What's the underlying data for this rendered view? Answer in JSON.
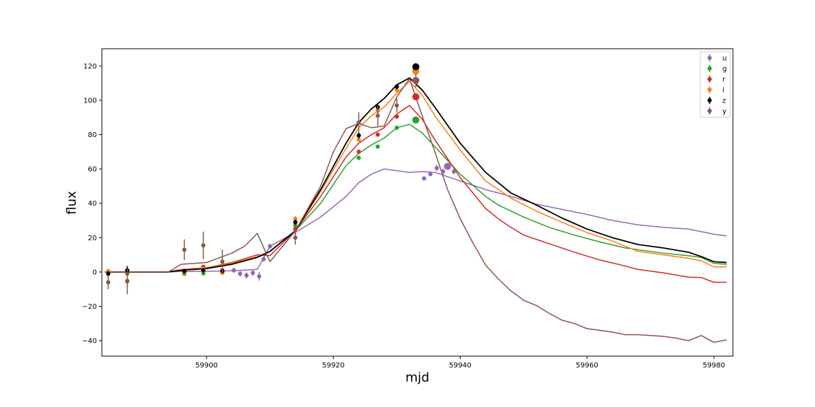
{
  "chart_data": {
    "type": "line",
    "xlabel": "mjd",
    "ylabel": "flux",
    "xlim": [
      59883.5,
      59983
    ],
    "ylim": [
      -49,
      130
    ],
    "x_ticks": [
      59900,
      59920,
      59940,
      59960,
      59980
    ],
    "y_ticks": [
      -40,
      -20,
      0,
      20,
      40,
      60,
      80,
      100,
      120
    ],
    "legend_position": "top-right",
    "grid": false,
    "series": [
      {
        "name": "u",
        "color": "#9467bd",
        "model": [
          [
            59884,
            0
          ],
          [
            59894,
            0
          ],
          [
            59896,
            0.3
          ],
          [
            59900,
            0.4
          ],
          [
            59904,
            0.7
          ],
          [
            59908,
            1.5
          ],
          [
            59910,
            15
          ],
          [
            59914,
            23
          ],
          [
            59918,
            32
          ],
          [
            59922,
            44
          ],
          [
            59924,
            52
          ],
          [
            59926,
            57
          ],
          [
            59928,
            60
          ],
          [
            59932,
            58
          ],
          [
            59934,
            58.5
          ],
          [
            59936,
            58
          ],
          [
            59940,
            53
          ],
          [
            59944,
            48
          ],
          [
            59948,
            44
          ],
          [
            59952,
            39.5
          ],
          [
            59956,
            36.5
          ],
          [
            59960,
            33.5
          ],
          [
            59964,
            30
          ],
          [
            59968,
            27.5
          ],
          [
            59972,
            26
          ],
          [
            59976,
            25
          ],
          [
            59980,
            22
          ],
          [
            59982,
            21
          ]
        ],
        "points": [
          [
            59904.3,
            1,
            1.5,
            6
          ],
          [
            59905.3,
            -1,
            1.6,
            6
          ],
          [
            59906.3,
            -2,
            1.8,
            6
          ],
          [
            59907.3,
            -0.5,
            1.8,
            6
          ],
          [
            59908.3,
            -2.5,
            2.5,
            6
          ],
          [
            59909,
            7.5,
            1.5,
            6
          ],
          [
            59910,
            15,
            1.5,
            6
          ],
          [
            59934.3,
            54.5,
            1.2,
            6
          ],
          [
            59935.3,
            57,
            1.2,
            6
          ],
          [
            59936.3,
            60.5,
            1.8,
            6
          ],
          [
            59937.3,
            58.5,
            1.8,
            6
          ],
          [
            59938,
            61.5,
            1.5,
            10
          ],
          [
            59939,
            58.5,
            1.5,
            6
          ]
        ]
      },
      {
        "name": "g",
        "color": "#2ca02c",
        "model": [
          [
            59884,
            0
          ],
          [
            59894,
            0
          ],
          [
            59896,
            1.2
          ],
          [
            59900,
            2
          ],
          [
            59904,
            5
          ],
          [
            59908,
            8.5
          ],
          [
            59910,
            12
          ],
          [
            59914,
            24
          ],
          [
            59918,
            40
          ],
          [
            59922,
            62
          ],
          [
            59924,
            69
          ],
          [
            59926,
            74
          ],
          [
            59928,
            78
          ],
          [
            59930,
            84
          ],
          [
            59932,
            86
          ],
          [
            59934,
            81
          ],
          [
            59936,
            73
          ],
          [
            59940,
            57
          ],
          [
            59944,
            44
          ],
          [
            59946,
            39
          ],
          [
            59950,
            32
          ],
          [
            59954,
            26
          ],
          [
            59958,
            21.5
          ],
          [
            59962,
            17.5
          ],
          [
            59966,
            14
          ],
          [
            59972,
            11
          ],
          [
            59976,
            9.5
          ],
          [
            59978,
            8.5
          ],
          [
            59980,
            5
          ],
          [
            59982,
            4.5
          ]
        ],
        "points": [
          [
            59884.5,
            0,
            1.2,
            6
          ],
          [
            59887.5,
            -1,
            1.2,
            6
          ],
          [
            59896.5,
            -1,
            1.2,
            6
          ],
          [
            59899.5,
            -0.8,
            1.2,
            6
          ],
          [
            59902.5,
            0.5,
            1.2,
            6
          ],
          [
            59914,
            27,
            1.5,
            6
          ],
          [
            59924,
            66.5,
            1.2,
            6
          ],
          [
            59927,
            73,
            1.2,
            6
          ],
          [
            59930,
            84,
            1.2,
            6
          ],
          [
            59933,
            88.5,
            1.5,
            10
          ]
        ]
      },
      {
        "name": "r",
        "color": "#d62728",
        "model": [
          [
            59884,
            0
          ],
          [
            59894,
            0
          ],
          [
            59896,
            1.5
          ],
          [
            59900,
            2.5
          ],
          [
            59904,
            5.5
          ],
          [
            59908,
            10
          ],
          [
            59910,
            9.5
          ],
          [
            59914,
            24
          ],
          [
            59918,
            44
          ],
          [
            59922,
            67
          ],
          [
            59924,
            75
          ],
          [
            59926,
            80
          ],
          [
            59928,
            84
          ],
          [
            59930,
            92
          ],
          [
            59932,
            97
          ],
          [
            59934,
            89
          ],
          [
            59936,
            77
          ],
          [
            59940,
            55
          ],
          [
            59944,
            37
          ],
          [
            59946,
            31
          ],
          [
            59948,
            26
          ],
          [
            59950,
            21.5
          ],
          [
            59954,
            16.5
          ],
          [
            59958,
            11.5
          ],
          [
            59962,
            7
          ],
          [
            59966,
            3.5
          ],
          [
            59968,
            1.5
          ],
          [
            59972,
            -0.5
          ],
          [
            59976,
            -3
          ],
          [
            59978,
            -3.2
          ],
          [
            59980,
            -6
          ],
          [
            59982,
            -6
          ]
        ],
        "points": [
          [
            59884.5,
            0,
            1.2,
            6
          ],
          [
            59887.5,
            0,
            1.2,
            6
          ],
          [
            59896.5,
            0,
            1.2,
            6
          ],
          [
            59899.5,
            3,
            1.2,
            6
          ],
          [
            59902.5,
            1,
            1.2,
            6
          ],
          [
            59914,
            25,
            1.5,
            6
          ],
          [
            59924,
            70,
            1.2,
            6
          ],
          [
            59927,
            80,
            1.2,
            6
          ],
          [
            59930,
            90.5,
            1.2,
            6
          ],
          [
            59933,
            102,
            1.5,
            10
          ]
        ]
      },
      {
        "name": "i",
        "color": "#ff7f0e",
        "model": [
          [
            59884,
            0
          ],
          [
            59894,
            0
          ],
          [
            59896,
            1.5
          ],
          [
            59900,
            2.5
          ],
          [
            59904,
            5
          ],
          [
            59908,
            9
          ],
          [
            59910,
            12
          ],
          [
            59914,
            24
          ],
          [
            59918,
            47
          ],
          [
            59922,
            72
          ],
          [
            59924,
            84
          ],
          [
            59926,
            91
          ],
          [
            59928,
            96
          ],
          [
            59930,
            104
          ],
          [
            59932,
            111
          ],
          [
            59934,
            103
          ],
          [
            59936,
            91
          ],
          [
            59940,
            71
          ],
          [
            59944,
            53
          ],
          [
            59948,
            43
          ],
          [
            59952,
            35.5
          ],
          [
            59956,
            29
          ],
          [
            59960,
            23
          ],
          [
            59964,
            18
          ],
          [
            59968,
            12
          ],
          [
            59972,
            10
          ],
          [
            59976,
            8
          ],
          [
            59978,
            6.5
          ],
          [
            59980,
            3
          ],
          [
            59982,
            3
          ]
        ],
        "points": [
          [
            59884.5,
            0.5,
            1.2,
            6
          ],
          [
            59887.5,
            -5,
            1.5,
            6
          ],
          [
            59896.5,
            0,
            1.2,
            6
          ],
          [
            59899.5,
            2,
            1.2,
            6
          ],
          [
            59902.5,
            -0.5,
            1.2,
            6
          ],
          [
            59914,
            31,
            1.5,
            6
          ],
          [
            59924,
            77,
            1.2,
            6
          ],
          [
            59927,
            94,
            1.2,
            6
          ],
          [
            59930,
            106,
            1.2,
            6
          ],
          [
            59933,
            117,
            1.5,
            10
          ]
        ]
      },
      {
        "name": "z",
        "color": "#000000",
        "model": [
          [
            59884,
            0
          ],
          [
            59894,
            0
          ],
          [
            59896,
            1
          ],
          [
            59900,
            2
          ],
          [
            59904,
            4.5
          ],
          [
            59908,
            8.5
          ],
          [
            59910,
            12
          ],
          [
            59914,
            24
          ],
          [
            59918,
            48
          ],
          [
            59922,
            75
          ],
          [
            59924,
            87
          ],
          [
            59926,
            95
          ],
          [
            59928,
            101
          ],
          [
            59930,
            109
          ],
          [
            59932,
            113
          ],
          [
            59934,
            106
          ],
          [
            59936,
            96
          ],
          [
            59940,
            75
          ],
          [
            59944,
            58
          ],
          [
            59946,
            52
          ],
          [
            59948,
            46
          ],
          [
            59952,
            39
          ],
          [
            59956,
            31.5
          ],
          [
            59960,
            25
          ],
          [
            59964,
            20
          ],
          [
            59968,
            16
          ],
          [
            59972,
            14
          ],
          [
            59976,
            11.5
          ],
          [
            59978,
            9
          ],
          [
            59980,
            6
          ],
          [
            59982,
            5.5
          ]
        ],
        "points": [
          [
            59884.5,
            -1,
            1.5,
            6
          ],
          [
            59887.5,
            1,
            2.5,
            6
          ],
          [
            59896.5,
            0.5,
            1.2,
            6
          ],
          [
            59899.5,
            1,
            1.2,
            6
          ],
          [
            59902.5,
            0.5,
            1.2,
            6
          ],
          [
            59914,
            29,
            1.5,
            6
          ],
          [
            59924,
            79.5,
            1.8,
            6
          ],
          [
            59927,
            96,
            1.5,
            6
          ],
          [
            59930,
            108,
            1.5,
            6
          ],
          [
            59933,
            119.5,
            1.5,
            10
          ]
        ]
      },
      {
        "name": "y",
        "color": "#8c564b",
        "model": [
          [
            59884,
            0
          ],
          [
            59894,
            0
          ],
          [
            59896,
            4.5
          ],
          [
            59898,
            5
          ],
          [
            59900,
            5.5
          ],
          [
            59904,
            11
          ],
          [
            59906,
            15
          ],
          [
            59908,
            22.5
          ],
          [
            59910,
            6
          ],
          [
            59914,
            24
          ],
          [
            59918,
            50
          ],
          [
            59920,
            70
          ],
          [
            59922,
            83.5
          ],
          [
            59924,
            86.5
          ],
          [
            59926,
            84
          ],
          [
            59928,
            85
          ],
          [
            59930,
            102
          ],
          [
            59932,
            112.5
          ],
          [
            59934,
            91
          ],
          [
            59936,
            70
          ],
          [
            59938,
            48
          ],
          [
            59940,
            31
          ],
          [
            59942,
            17
          ],
          [
            59944,
            4
          ],
          [
            59946,
            -4
          ],
          [
            59948,
            -11
          ],
          [
            59950,
            -16.5
          ],
          [
            59952,
            -19.5
          ],
          [
            59954,
            -24
          ],
          [
            59956,
            -28
          ],
          [
            59958,
            -30
          ],
          [
            59960,
            -33
          ],
          [
            59962,
            -34
          ],
          [
            59964,
            -35
          ],
          [
            59966,
            -36.5
          ],
          [
            59968,
            -36.5
          ],
          [
            59972,
            -37.5
          ],
          [
            59974,
            -38.5
          ],
          [
            59976,
            -40
          ],
          [
            59978,
            -37
          ],
          [
            59980,
            -41
          ],
          [
            59982,
            -39.5
          ]
        ],
        "points": [
          [
            59884.5,
            -6,
            4,
            6
          ],
          [
            59887.5,
            -5.5,
            7.5,
            6
          ],
          [
            59896.5,
            13,
            6,
            6
          ],
          [
            59899.5,
            15.5,
            8,
            6
          ],
          [
            59902.5,
            6,
            7,
            6
          ],
          [
            59914,
            20,
            4,
            6
          ],
          [
            59924,
            87,
            6,
            6
          ],
          [
            59927,
            91,
            6,
            6
          ],
          [
            59930,
            97,
            4,
            6
          ],
          [
            59933,
            111.5,
            4,
            10
          ]
        ]
      }
    ]
  }
}
